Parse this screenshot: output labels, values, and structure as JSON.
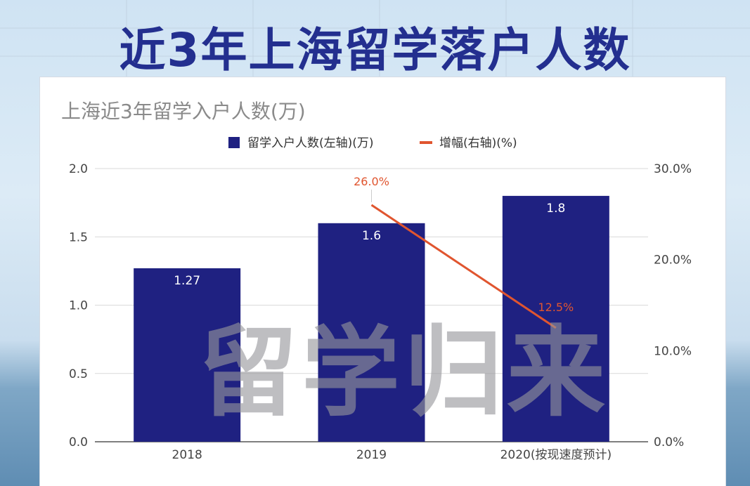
{
  "banner": {
    "title": "近3年上海留学落户人数"
  },
  "watermark": {
    "text": "留学归来"
  },
  "colors": {
    "bar": "#1f2181",
    "line": "#e0552f",
    "banner": "#232f8f",
    "title_text": "#8a8a8a"
  },
  "chart_data": {
    "type": "bar",
    "title": "上海近3年留学入户人数(万)",
    "categories": [
      "2018",
      "2019",
      "2020(按现速度预计)"
    ],
    "series": [
      {
        "name": "留学入户人数(左轴)(万)",
        "type": "bar",
        "axis": "left",
        "values": [
          1.27,
          1.6,
          1.8
        ],
        "labels": [
          "1.27",
          "1.6",
          "1.8"
        ]
      },
      {
        "name": "增幅(右轴)(%)",
        "type": "line",
        "axis": "right",
        "values": [
          null,
          26.0,
          12.5
        ],
        "labels": [
          "",
          "26.0%",
          "12.5%"
        ]
      }
    ],
    "y_left": {
      "min": 0,
      "max": 2.0,
      "ticks": [
        0.0,
        0.5,
        1.0,
        1.5,
        2.0
      ],
      "tick_labels": [
        "0.0",
        "0.5",
        "1.0",
        "1.5",
        "2.0"
      ]
    },
    "y_right": {
      "min": 0,
      "max": 30,
      "ticks": [
        0,
        10,
        20,
        30
      ],
      "tick_labels": [
        "0.0%",
        "10.0%",
        "20.0%",
        "30.0%"
      ]
    },
    "legend": "top-center",
    "grid": true
  }
}
